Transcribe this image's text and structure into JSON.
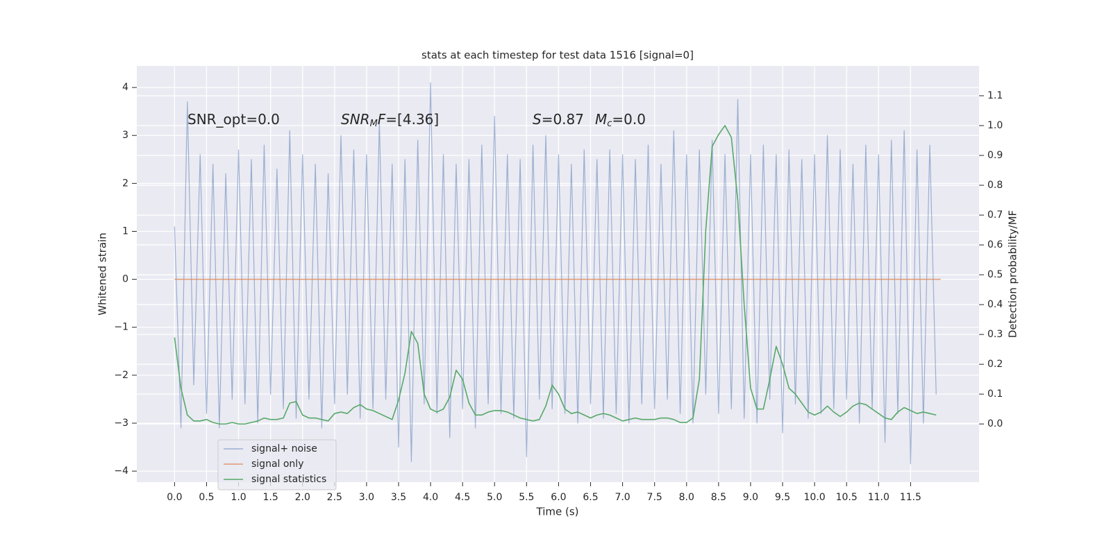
{
  "chart_data": {
    "type": "line",
    "title": "stats at each timestep for test data 1516 [signal=0]",
    "xlabel": "Time (s)",
    "ylabel": "Whitened strain",
    "y2label": "Detection probability/MF",
    "annotations": [
      [
        "SNR_opt=0.0"
      ],
      [
        "SNR",
        "M",
        "F",
        "=[4.36]"
      ],
      [
        "S",
        "=0.87",
        "M",
        "c",
        "=0.0"
      ]
    ],
    "xlim": [
      -0.59,
      12.57
    ],
    "ylim": [
      -4.23,
      4.45
    ],
    "y2lim": [
      -0.195,
      1.2
    ],
    "xticks": [
      {
        "value": 0,
        "label": "0.0"
      },
      0.5,
      {
        "value": 1,
        "label": "1.0"
      },
      1.5,
      {
        "value": 2,
        "label": "2.0"
      },
      2.5,
      {
        "value": 3,
        "label": "3.0"
      },
      3.5,
      {
        "value": 4,
        "label": "4.0"
      },
      4.5,
      {
        "value": 5,
        "label": "5.0"
      },
      5.5,
      {
        "value": 6,
        "label": "6.0"
      },
      6.5,
      {
        "value": 7,
        "label": "7.0"
      },
      7.5,
      {
        "value": 8,
        "label": "8.0"
      },
      8.5,
      {
        "value": 9,
        "label": "9.0"
      },
      9.5,
      {
        "value": 10,
        "label": "10.0"
      },
      10.5,
      {
        "value": 11,
        "label": "11.0"
      },
      11.5
    ],
    "yticks": [
      {
        "value": -4,
        "label": "−4"
      },
      {
        "value": -3,
        "label": "−3"
      },
      {
        "value": -2,
        "label": "−2"
      },
      {
        "value": -1,
        "label": "−1"
      },
      0,
      1,
      2,
      3,
      4
    ],
    "y2ticks": [
      {
        "value": 0,
        "label": "0.0"
      },
      0.1,
      0.2,
      0.3,
      0.4,
      0.5,
      0.6,
      0.7,
      0.8,
      0.9,
      {
        "value": 1,
        "label": "1.0"
      },
      1.1
    ],
    "grid": true,
    "legend": "lower left",
    "series": [
      {
        "name": "signal+ noise",
        "color": "#4c72b0",
        "x": [
          0,
          0.1,
          0.2,
          0.3,
          0.4,
          0.5,
          0.6,
          0.7,
          0.8,
          0.9,
          1,
          1.1,
          1.2,
          1.3,
          1.4,
          1.5,
          1.6,
          1.7,
          1.8,
          1.9,
          2,
          2.1,
          2.2,
          2.3,
          2.4,
          2.5,
          2.6,
          2.7,
          2.8,
          2.9,
          3,
          3.1,
          3.2,
          3.3,
          3.4,
          3.5,
          3.6,
          3.7,
          3.8,
          3.9,
          4,
          4.1,
          4.2,
          4.3,
          4.4,
          4.5,
          4.6,
          4.7,
          4.8,
          4.9,
          5,
          5.1,
          5.2,
          5.3,
          5.4,
          5.5,
          5.6,
          5.7,
          5.8,
          5.9,
          6,
          6.1,
          6.2,
          6.3,
          6.4,
          6.5,
          6.6,
          6.7,
          6.8,
          6.9,
          7,
          7.1,
          7.2,
          7.3,
          7.4,
          7.5,
          7.6,
          7.7,
          7.8,
          7.9,
          8,
          8.1,
          8.2,
          8.3,
          8.4,
          8.5,
          8.6,
          8.7,
          8.8,
          8.9,
          9,
          9.1,
          9.2,
          9.3,
          9.4,
          9.5,
          9.6,
          9.7,
          9.8,
          9.9,
          10,
          10.1,
          10.2,
          10.3,
          10.4,
          10.5,
          10.6,
          10.7,
          10.8,
          10.9,
          11,
          11.1,
          11.2,
          11.3,
          11.4,
          11.5,
          11.6,
          11.7,
          11.8,
          11.9
        ],
        "values": [
          1.1,
          -3.1,
          3.7,
          -2.2,
          2.6,
          -2.8,
          2.4,
          -3.1,
          2.2,
          -2.5,
          2.7,
          -2.6,
          2.5,
          -3.0,
          2.8,
          -2.4,
          2.3,
          -2.7,
          3.1,
          -2.9,
          2.6,
          -2.5,
          2.4,
          -3.1,
          2.2,
          -2.6,
          3.0,
          -2.4,
          2.7,
          -2.9,
          2.6,
          -2.7,
          3.3,
          -2.5,
          2.4,
          -3.5,
          2.5,
          -3.8,
          2.9,
          -2.6,
          4.1,
          -2.8,
          2.6,
          -3.3,
          2.4,
          -2.7,
          2.5,
          -3.1,
          2.8,
          -2.6,
          3.4,
          -2.8,
          2.6,
          -2.9,
          2.5,
          -3.7,
          2.8,
          -2.5,
          3.0,
          -2.7,
          2.6,
          -2.8,
          2.4,
          -3.0,
          2.7,
          -2.6,
          2.5,
          -2.9,
          2.7,
          -2.8,
          2.6,
          -3.0,
          2.5,
          -2.6,
          2.8,
          -2.7,
          2.4,
          -2.5,
          3.1,
          -2.8,
          2.6,
          -3.0,
          2.7,
          -2.4,
          2.9,
          -2.8,
          2.6,
          -2.7,
          3.75,
          -2.9,
          2.6,
          -3.0,
          2.8,
          -2.5,
          2.6,
          -3.2,
          2.7,
          -2.6,
          2.5,
          -2.9,
          2.6,
          -2.8,
          3.0,
          -2.7,
          2.7,
          -2.5,
          2.4,
          -3.0,
          2.8,
          -2.7,
          2.6,
          -3.4,
          2.9,
          -2.8,
          3.1,
          -3.85,
          2.7,
          -3.0,
          2.8,
          -2.4
        ]
      },
      {
        "name": "signal only",
        "color": "#dd8452",
        "x": [
          0,
          11.97
        ],
        "values": [
          0,
          0
        ]
      },
      {
        "name": "signal statistics",
        "color": "#55a868",
        "axis": "y2",
        "x": [
          0,
          0.1,
          0.2,
          0.3,
          0.4,
          0.5,
          0.6,
          0.7,
          0.8,
          0.9,
          1,
          1.1,
          1.2,
          1.3,
          1.4,
          1.5,
          1.6,
          1.7,
          1.8,
          1.9,
          2,
          2.1,
          2.2,
          2.3,
          2.4,
          2.5,
          2.6,
          2.7,
          2.8,
          2.9,
          3,
          3.1,
          3.2,
          3.3,
          3.4,
          3.5,
          3.6,
          3.7,
          3.8,
          3.9,
          4,
          4.1,
          4.2,
          4.3,
          4.4,
          4.5,
          4.6,
          4.7,
          4.8,
          4.9,
          5,
          5.1,
          5.2,
          5.3,
          5.4,
          5.5,
          5.6,
          5.7,
          5.8,
          5.9,
          6,
          6.1,
          6.2,
          6.3,
          6.4,
          6.5,
          6.6,
          6.7,
          6.8,
          6.9,
          7,
          7.1,
          7.2,
          7.3,
          7.4,
          7.5,
          7.6,
          7.7,
          7.8,
          7.9,
          8,
          8.1,
          8.2,
          8.3,
          8.4,
          8.5,
          8.6,
          8.7,
          8.8,
          8.9,
          9,
          9.1,
          9.2,
          9.3,
          9.4,
          9.5,
          9.6,
          9.7,
          9.8,
          9.9,
          10,
          10.1,
          10.2,
          10.3,
          10.4,
          10.5,
          10.6,
          10.7,
          10.8,
          10.9,
          11,
          11.1,
          11.2,
          11.3,
          11.4,
          11.5,
          11.6,
          11.7,
          11.8,
          11.9
        ],
        "values": [
          0.29,
          0.12,
          0.03,
          0.01,
          0.01,
          0.015,
          0.005,
          0,
          0,
          0.005,
          0,
          0,
          0.005,
          0.01,
          0.02,
          0.015,
          0.015,
          0.02,
          0.07,
          0.075,
          0.03,
          0.02,
          0.02,
          0.015,
          0.01,
          0.035,
          0.04,
          0.035,
          0.055,
          0.065,
          0.05,
          0.045,
          0.035,
          0.025,
          0.015,
          0.08,
          0.17,
          0.31,
          0.27,
          0.1,
          0.05,
          0.04,
          0.05,
          0.09,
          0.18,
          0.15,
          0.07,
          0.03,
          0.03,
          0.04,
          0.045,
          0.045,
          0.04,
          0.03,
          0.02,
          0.015,
          0.01,
          0.015,
          0.06,
          0.13,
          0.1,
          0.05,
          0.035,
          0.04,
          0.03,
          0.02,
          0.03,
          0.035,
          0.03,
          0.02,
          0.01,
          0.015,
          0.02,
          0.015,
          0.015,
          0.015,
          0.02,
          0.02,
          0.015,
          0.005,
          0.005,
          0.02,
          0.15,
          0.65,
          0.93,
          0.97,
          1.0,
          0.96,
          0.75,
          0.4,
          0.12,
          0.05,
          0.05,
          0.15,
          0.26,
          0.2,
          0.12,
          0.1,
          0.07,
          0.04,
          0.03,
          0.04,
          0.06,
          0.04,
          0.025,
          0.04,
          0.06,
          0.07,
          0.065,
          0.05,
          0.035,
          0.02,
          0.015,
          0.04,
          0.055,
          0.045,
          0.035,
          0.04,
          0.035,
          0.03
        ]
      }
    ]
  }
}
